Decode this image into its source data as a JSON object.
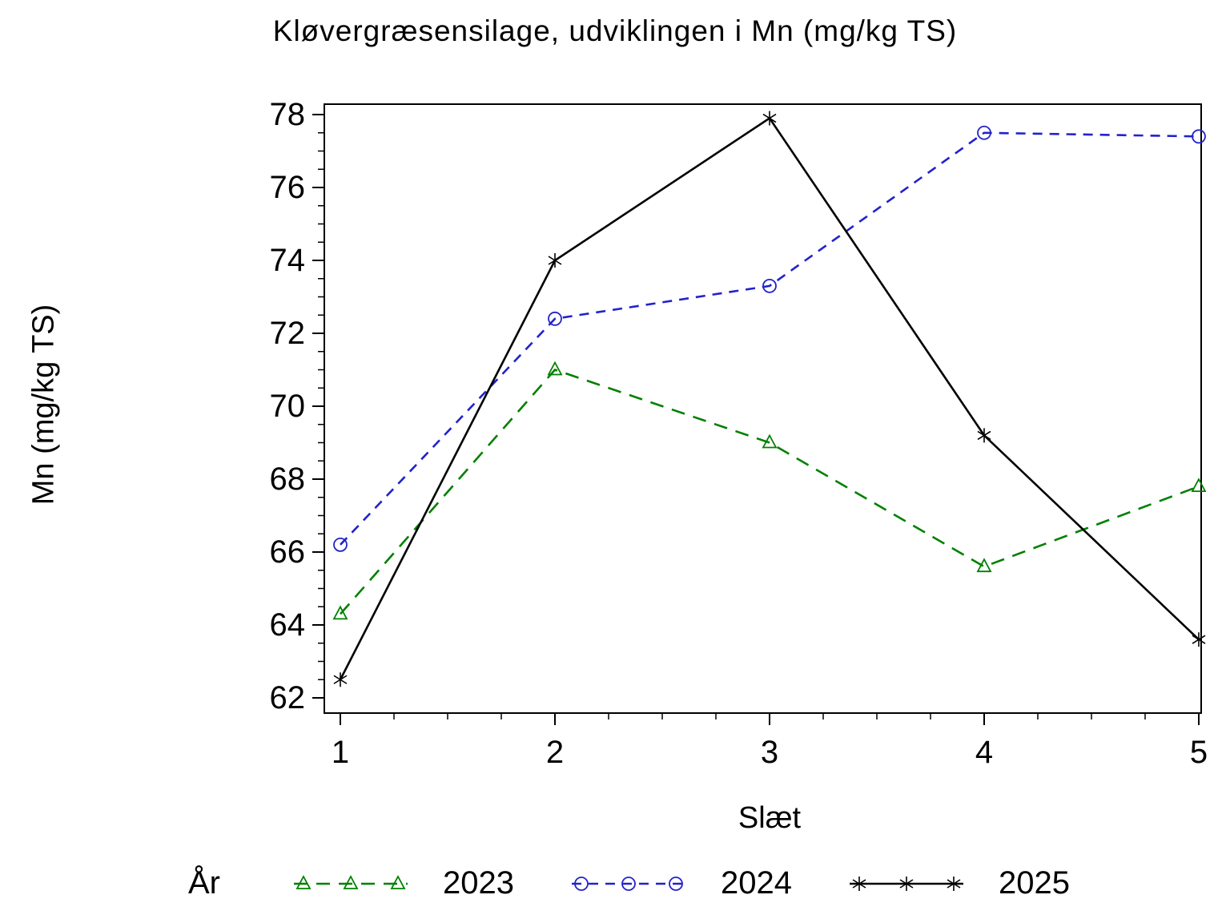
{
  "chart_data": {
    "type": "line",
    "title": "Kløvergræsensilage, udviklingen i Mn (mg/kg TS)",
    "xlabel": "Slæt",
    "ylabel": "Mn (mg/kg TS)",
    "x": [
      1,
      2,
      3,
      4,
      5
    ],
    "xticks": [
      1,
      2,
      3,
      4,
      5
    ],
    "xlim": [
      1,
      5
    ],
    "yticks": [
      62,
      64,
      66,
      68,
      70,
      72,
      74,
      76,
      78
    ],
    "ylim": [
      62,
      78
    ],
    "grid": false,
    "frame": true,
    "series": [
      {
        "name": "2023",
        "color": "#008000",
        "dash": "dashed",
        "marker": "triangle",
        "values": [
          64.3,
          71.0,
          69.0,
          65.6,
          67.8
        ]
      },
      {
        "name": "2024",
        "color": "#2222cc",
        "dash": "dashed",
        "marker": "circle",
        "values": [
          66.2,
          72.4,
          73.3,
          77.5,
          77.4
        ]
      },
      {
        "name": "2025",
        "color": "#000000",
        "dash": "solid",
        "marker": "star",
        "values": [
          62.5,
          74.0,
          77.9,
          69.2,
          63.6
        ]
      }
    ],
    "legend": {
      "title": "År",
      "position": "bottom"
    }
  }
}
